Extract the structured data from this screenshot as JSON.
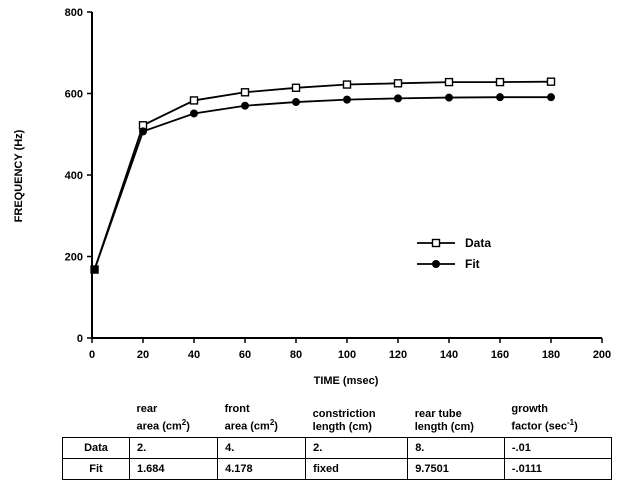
{
  "chart_data": {
    "type": "line",
    "title": "",
    "xlabel": "TIME (msec)",
    "ylabel": "FREQUENCY (Hz)",
    "xlim": [
      0,
      200
    ],
    "ylim": [
      0,
      800
    ],
    "xticks": [
      "0",
      "20",
      "40",
      "60",
      "80",
      "100",
      "120",
      "140",
      "160",
      "180",
      "200"
    ],
    "yticks": [
      "0",
      "200",
      "400",
      "600",
      "800"
    ],
    "grid": false,
    "legend_position": "lower-right",
    "series": [
      {
        "name": "Data",
        "marker": "open-square",
        "points": [
          [
            1,
            168
          ],
          [
            20,
            522
          ],
          [
            40,
            583
          ],
          [
            60,
            603
          ],
          [
            80,
            614
          ],
          [
            100,
            622
          ],
          [
            120,
            625
          ],
          [
            140,
            628
          ],
          [
            160,
            628
          ],
          [
            180,
            629
          ]
        ]
      },
      {
        "name": "Fit",
        "marker": "filled-circle",
        "points": [
          [
            1,
            168
          ],
          [
            20,
            507
          ],
          [
            40,
            551
          ],
          [
            60,
            570
          ],
          [
            80,
            579
          ],
          [
            100,
            585
          ],
          [
            120,
            588
          ],
          [
            140,
            590
          ],
          [
            160,
            591
          ],
          [
            180,
            591
          ]
        ]
      }
    ]
  },
  "table": {
    "headers": [
      {
        "line1": "rear",
        "line2": "area (cm",
        "sup": "2",
        "tail": ")"
      },
      {
        "line1": "front",
        "line2": "area (cm",
        "sup": "2",
        "tail": ")"
      },
      {
        "line1": "constriction",
        "line2": "length (cm)",
        "sup": "",
        "tail": ""
      },
      {
        "line1": "rear tube",
        "line2": "length (cm)",
        "sup": "",
        "tail": ""
      },
      {
        "line1": "growth",
        "line2": "factor (sec",
        "sup": "-1",
        "tail": ")"
      }
    ],
    "rows": [
      {
        "label": "Data",
        "cells": [
          "2.",
          "4.",
          "2.",
          "8.",
          "-.01"
        ]
      },
      {
        "label": "Fit",
        "cells": [
          "1.684",
          "4.178",
          "fixed",
          "9.7501",
          "-.0111"
        ]
      }
    ]
  }
}
